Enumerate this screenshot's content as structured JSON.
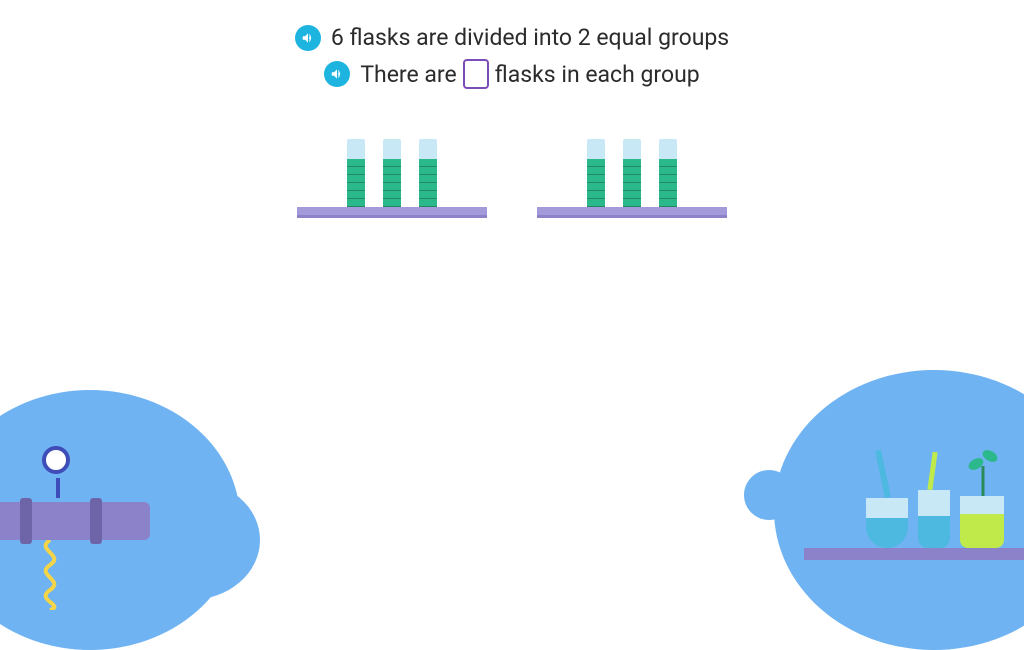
{
  "question": {
    "line1": "6 flasks are divided into 2 equal groups",
    "line2_before": "There are",
    "line2_after": "flasks in each group",
    "answer_value": ""
  },
  "diagram": {
    "groups": 2,
    "tubes_per_group": 3,
    "tube_empty_color": "#c8e8f5",
    "tube_fill_color": "#2bb88a",
    "shelf_color": "#a39bd9"
  },
  "colors": {
    "background": "#ffffff",
    "speaker_bg": "#1db4e0",
    "text": "#2b2b2b",
    "answer_border": "#7b4db8",
    "cloud": "#6fb3f2",
    "pipe": "#8b82c9",
    "accent_green": "#c0ea4a",
    "accent_blue": "#4db8e0"
  },
  "icons": {
    "speaker": "speaker-icon"
  }
}
